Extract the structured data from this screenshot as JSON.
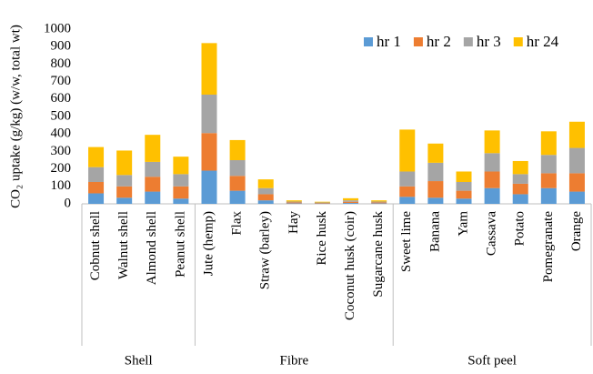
{
  "chart_data": {
    "type": "stacked_bar",
    "y_label": "CO₂ uptake (g/kg) (w/w, total wt)",
    "groups": [
      {
        "name": "Shell",
        "categories": [
          "Cobnut shell",
          "Walnut shell",
          "Almond shell",
          "Peanut shell"
        ]
      },
      {
        "name": "Fibre",
        "categories": [
          "Jute (hemp)",
          "Flax",
          "Straw (barley)",
          "Hay",
          "Rice husk",
          "Coconut husk (coir)",
          "Sugarcane husk"
        ]
      },
      {
        "name": "Soft peel",
        "categories": [
          "Sweet lime",
          "Banana",
          "Yam",
          "Cassava",
          "Potato",
          "Pomegranate",
          "Orange"
        ]
      }
    ],
    "series": [
      {
        "name": "hr 1",
        "color": "#5b9bd5",
        "values": [
          60,
          35,
          70,
          30,
          190,
          75,
          20,
          3,
          2,
          5,
          3,
          40,
          35,
          30,
          90,
          55,
          90,
          70
        ]
      },
      {
        "name": "hr 2",
        "color": "#ed7d31",
        "values": [
          65,
          65,
          85,
          70,
          215,
          85,
          35,
          5,
          3,
          7,
          5,
          60,
          95,
          45,
          95,
          60,
          85,
          105
        ]
      },
      {
        "name": "hr 3",
        "color": "#a5a5a5",
        "values": [
          85,
          65,
          85,
          70,
          220,
          90,
          35,
          5,
          3,
          8,
          5,
          85,
          105,
          50,
          105,
          55,
          105,
          145
        ]
      },
      {
        "name": "hr 24",
        "color": "#ffc000",
        "values": [
          115,
          140,
          155,
          100,
          295,
          115,
          50,
          7,
          4,
          12,
          7,
          240,
          110,
          60,
          130,
          75,
          135,
          150
        ]
      }
    ],
    "ylim": [
      0,
      1000
    ],
    "yticks": [
      0,
      100,
      200,
      300,
      400,
      500,
      600,
      700,
      800,
      900,
      1000
    ],
    "legend": "top-right"
  }
}
